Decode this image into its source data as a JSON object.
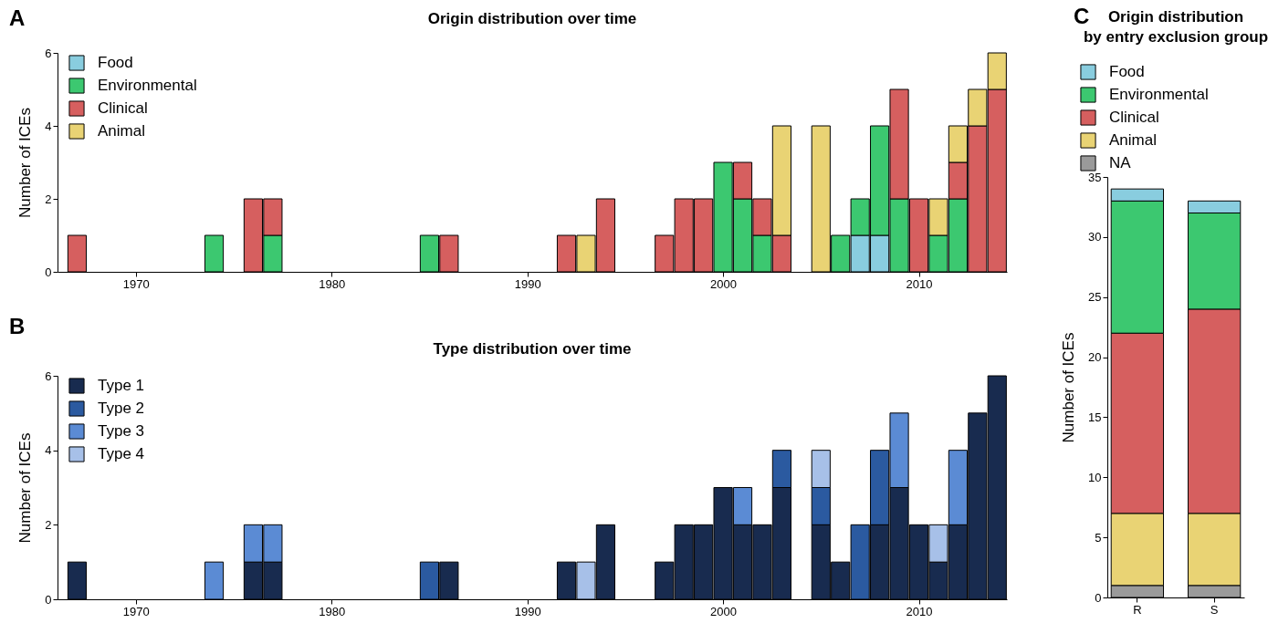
{
  "chart_data": [
    {
      "type": "bar",
      "title": "Origin distribution over time",
      "ylabel": "Number of ICEs",
      "annotations": [
        "A"
      ],
      "stacked": true,
      "legend": "top left",
      "xlim": [
        1966,
        2014.5
      ],
      "xticks": [
        1970,
        1980,
        1990,
        2000,
        2010
      ],
      "ylim": [
        0,
        6
      ],
      "yticks": [
        0,
        2,
        4,
        6
      ],
      "x": [
        1967,
        1974,
        1976,
        1977,
        1985,
        1986,
        1992,
        1993,
        1994,
        1997,
        1998,
        1999,
        2000,
        2001,
        2002,
        2003,
        2005,
        2006,
        2007,
        2008,
        2009,
        2010,
        2011,
        2012,
        2013,
        2014
      ],
      "series": [
        {
          "name": "Food",
          "color": "#89cddf",
          "values": [
            null,
            null,
            null,
            null,
            null,
            null,
            null,
            null,
            null,
            null,
            null,
            null,
            null,
            null,
            null,
            null,
            null,
            null,
            1,
            1,
            null,
            null,
            null,
            null,
            null,
            null
          ]
        },
        {
          "name": "Environmental",
          "color": "#3cc870",
          "values": [
            null,
            1,
            null,
            1,
            1,
            null,
            null,
            null,
            null,
            null,
            null,
            null,
            3,
            2,
            1,
            null,
            null,
            1,
            1,
            3,
            2,
            null,
            1,
            2,
            null,
            null
          ]
        },
        {
          "name": "Clinical",
          "color": "#d65f5f",
          "values": [
            1,
            null,
            2,
            1,
            null,
            1,
            1,
            null,
            2,
            1,
            2,
            2,
            null,
            1,
            1,
            1,
            null,
            null,
            null,
            null,
            3,
            2,
            null,
            1,
            4,
            5
          ]
        },
        {
          "name": "Animal",
          "color": "#e9d374",
          "values": [
            null,
            null,
            null,
            null,
            null,
            null,
            null,
            1,
            null,
            null,
            null,
            null,
            null,
            null,
            null,
            3,
            4,
            null,
            null,
            null,
            null,
            null,
            1,
            1,
            1,
            1
          ]
        }
      ]
    },
    {
      "type": "bar",
      "title": "Type distribution over time",
      "ylabel": "Number of ICEs",
      "annotations": [
        "B"
      ],
      "stacked": true,
      "legend": "top left",
      "xlim": [
        1966,
        2014.5
      ],
      "xticks": [
        1970,
        1980,
        1990,
        2000,
        2010
      ],
      "ylim": [
        0,
        6
      ],
      "yticks": [
        0,
        2,
        4,
        6
      ],
      "x": [
        1967,
        1974,
        1976,
        1977,
        1985,
        1986,
        1992,
        1993,
        1994,
        1997,
        1998,
        1999,
        2000,
        2001,
        2002,
        2003,
        2005,
        2006,
        2007,
        2008,
        2009,
        2010,
        2011,
        2012,
        2013,
        2014
      ],
      "series": [
        {
          "name": "Type 1",
          "color": "#182b4f",
          "values": [
            1,
            null,
            1,
            1,
            null,
            1,
            1,
            null,
            2,
            1,
            2,
            2,
            3,
            2,
            2,
            3,
            2,
            1,
            null,
            2,
            3,
            2,
            1,
            2,
            5,
            6
          ]
        },
        {
          "name": "Type 2",
          "color": "#2b5aa0",
          "values": [
            null,
            null,
            null,
            null,
            1,
            null,
            null,
            null,
            null,
            null,
            null,
            null,
            null,
            null,
            null,
            1,
            1,
            null,
            2,
            2,
            null,
            null,
            null,
            null,
            null,
            null
          ]
        },
        {
          "name": "Type 3",
          "color": "#5b8bd4",
          "values": [
            null,
            1,
            1,
            1,
            null,
            null,
            null,
            null,
            null,
            null,
            null,
            null,
            null,
            1,
            null,
            null,
            null,
            null,
            null,
            null,
            2,
            null,
            null,
            2,
            null,
            null
          ]
        },
        {
          "name": "Type 4",
          "color": "#a7c0e8",
          "values": [
            null,
            null,
            null,
            null,
            null,
            null,
            null,
            1,
            null,
            null,
            null,
            null,
            null,
            null,
            null,
            null,
            1,
            null,
            null,
            null,
            null,
            null,
            1,
            null,
            null,
            null
          ]
        }
      ]
    },
    {
      "type": "bar",
      "title": "Origin distribution\nby entry exclusion group",
      "ylabel": "Number of ICEs",
      "annotations": [
        "C"
      ],
      "stacked": true,
      "legend": "top",
      "categories": [
        "R",
        "S"
      ],
      "ylim": [
        0,
        35
      ],
      "yticks": [
        0,
        5,
        10,
        15,
        20,
        25,
        30,
        35
      ],
      "series": [
        {
          "name": "NA",
          "color": "#9a9a9a",
          "values": [
            1,
            1
          ]
        },
        {
          "name": "Animal",
          "color": "#e9d374",
          "values": [
            6,
            6
          ]
        },
        {
          "name": "Clinical",
          "color": "#d65f5f",
          "values": [
            15,
            17
          ]
        },
        {
          "name": "Environmental",
          "color": "#3cc870",
          "values": [
            11,
            8
          ]
        },
        {
          "name": "Food",
          "color": "#89cddf",
          "values": [
            1,
            1
          ]
        }
      ]
    }
  ]
}
